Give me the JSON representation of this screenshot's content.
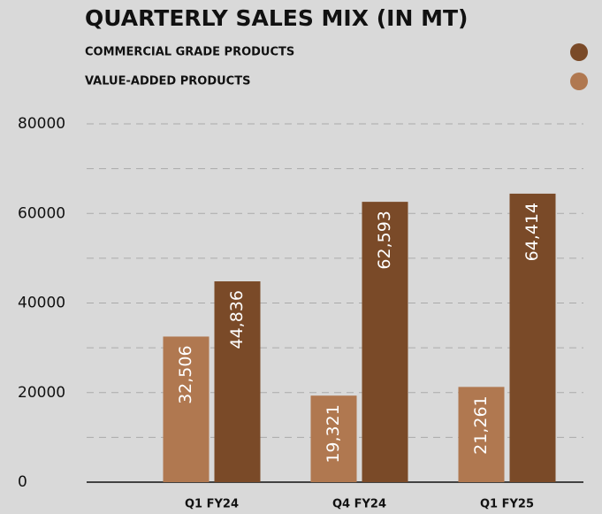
{
  "chart_data": {
    "type": "bar",
    "title": "QUARTERLY SALES MIX (IN MT)",
    "categories": [
      "Q1 FY24",
      "Q4 FY24",
      "Q1 FY25"
    ],
    "series": [
      {
        "name": "VALUE-ADDED PRODUCTS",
        "color": "#b07850",
        "values": [
          32506,
          19321,
          21261
        ],
        "value_labels": [
          "32,506",
          "19,321",
          "21,261"
        ]
      },
      {
        "name": "COMMERCIAL GRADE PRODUCTS",
        "color": "#7a4a28",
        "values": [
          44836,
          62593,
          64414
        ],
        "value_labels": [
          "44,836",
          "62,593",
          "64,414"
        ]
      }
    ],
    "legend_order": [
      1,
      0
    ],
    "ylim": [
      0,
      80000
    ],
    "yticks": [
      0,
      20000,
      40000,
      60000,
      80000
    ],
    "minor_grid": [
      10000,
      30000,
      50000,
      70000
    ],
    "grid": true
  }
}
